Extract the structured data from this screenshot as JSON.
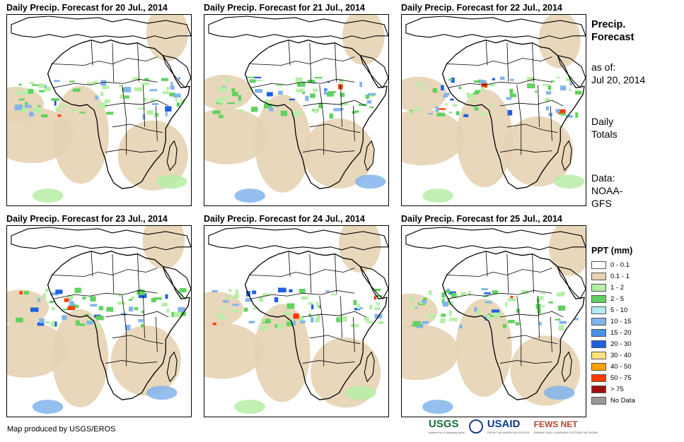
{
  "panels": [
    {
      "title": "Daily Precip. Forecast for 20 Jul., 2014"
    },
    {
      "title": "Daily Precip. Forecast for 21 Jul., 2014"
    },
    {
      "title": "Daily Precip. Forecast for 22 Jul., 2014"
    },
    {
      "title": "Daily Precip. Forecast for 23 Jul., 2014"
    },
    {
      "title": "Daily Precip. Forecast for 24 Jul., 2014"
    },
    {
      "title": "Daily Precip. Forecast for 25 Jul., 2014"
    }
  ],
  "info": {
    "title_line1": "Precip.",
    "title_line2": "Forecast",
    "asof_line1": "as of:",
    "asof_line2": "Jul 20, 2014",
    "totals_line1": "Daily",
    "totals_line2": "Totals",
    "data_line1": "Data:",
    "data_line2": "NOAA-",
    "data_line3": "GFS"
  },
  "legend": {
    "title": "PPT (mm)",
    "items": [
      {
        "label": "0 - 0.1",
        "color": "#ffffff"
      },
      {
        "label": "0.1 - 1",
        "color": "#e6d3b3"
      },
      {
        "label": "1 - 2",
        "color": "#b5efa6"
      },
      {
        "label": "2 - 5",
        "color": "#5fd25f"
      },
      {
        "label": "5 - 10",
        "color": "#b2ebf2"
      },
      {
        "label": "10 - 15",
        "color": "#82b4ec"
      },
      {
        "label": "15 - 20",
        "color": "#4b8fe6"
      },
      {
        "label": "20 - 30",
        "color": "#2060e0"
      },
      {
        "label": "30 - 40",
        "color": "#ffe37a"
      },
      {
        "label": "40 - 50",
        "color": "#ff9f00"
      },
      {
        "label": "50 - 75",
        "color": "#ff3a00"
      },
      {
        "label": "> 75",
        "color": "#a01010"
      },
      {
        "label": "No Data",
        "color": "#999999"
      }
    ]
  },
  "footer": {
    "credit": "Map produced by USGS/EROS"
  },
  "logos": {
    "usgs": "USGS",
    "usgs_tag": "science for a changing world",
    "usaid": "USAID",
    "usaid_tag": "FROM THE AMERICAN PEOPLE",
    "fews": "FEWS NET",
    "fews_tag": "FAMINE EARLY WARNING SYSTEMS NETWORK"
  }
}
